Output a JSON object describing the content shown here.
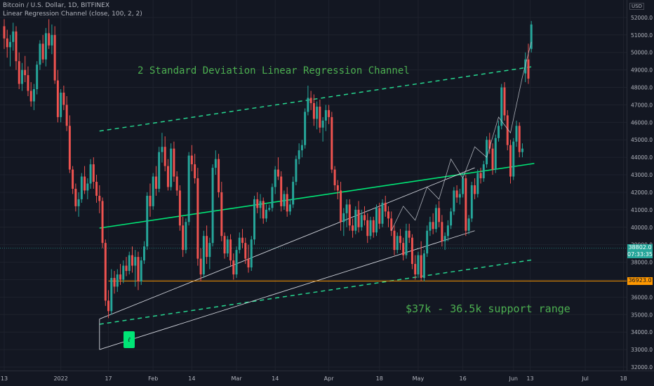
{
  "header": {
    "title": "Bitcoin / U.S. Dollar, 1D, BITFINEX",
    "indicator": "Linear Regression Channel (close, 100, 2, 2)",
    "currency": "USD"
  },
  "annotations": {
    "channel_label": "2 Standard Deviation Linear Regression Channel",
    "support_label": "$37k - 36.5k support range",
    "marker_glyph": "ℓ"
  },
  "colors": {
    "background": "#131722",
    "up_candle": "#26a69a",
    "down_candle": "#ef5350",
    "regression_line": "#00e676",
    "channel_dashed": "#26d68f",
    "support_line": "#ff9800",
    "trend_lines": "#d1d4dc",
    "price_badge": "#26a69a",
    "support_badge": "#ff9800"
  },
  "chart_data": {
    "type": "candlestick",
    "title": "Bitcoin / U.S. Dollar, 1D, BITFINEX",
    "y_axis": {
      "min": 31800,
      "max": 53000,
      "ticks": [
        32000,
        33000,
        34000,
        35000,
        36000,
        37000,
        38000,
        39000,
        40000,
        41000,
        42000,
        43000,
        44000,
        45000,
        46000,
        47000,
        48000,
        49000,
        50000,
        51000,
        52000
      ],
      "tick_labels": [
        "32000.0",
        "33000.0",
        "34000.0",
        "35000.0",
        "36000.0",
        "37000.0",
        "38000.0",
        "39000.0",
        "40000.0",
        "41000.0",
        "42000.0",
        "43000.0",
        "44000.0",
        "45000.0",
        "46000.0",
        "47000.0",
        "48000.0",
        "49000.0",
        "50000.0",
        "51000.0",
        "52000.0"
      ]
    },
    "x_axis": {
      "start_day": 0,
      "end_day": 177,
      "ticks": [
        {
          "day": 0,
          "label": "13"
        },
        {
          "day": 19,
          "label": "2022"
        },
        {
          "day": 35,
          "label": "17"
        },
        {
          "day": 50,
          "label": "Feb"
        },
        {
          "day": 63,
          "label": "14"
        },
        {
          "day": 78,
          "label": "Mar"
        },
        {
          "day": 91,
          "label": "14"
        },
        {
          "day": 109,
          "label": "Apr"
        },
        {
          "day": 126,
          "label": "18"
        },
        {
          "day": 139,
          "label": "May"
        },
        {
          "day": 154,
          "label": "16"
        },
        {
          "day": 171,
          "label": "Jun"
        }
      ],
      "extra_ticks": [
        {
          "label": "13",
          "pos": 0.846
        },
        {
          "label": "Jul",
          "pos": 0.934
        },
        {
          "label": "18",
          "pos": 0.995
        }
      ]
    },
    "candles": [
      [
        51500,
        51900,
        50200,
        50800
      ],
      [
        50800,
        51300,
        49700,
        50300
      ],
      [
        50300,
        51000,
        49200,
        50600
      ],
      [
        50600,
        51700,
        50100,
        51200
      ],
      [
        51200,
        51500,
        49000,
        49500
      ],
      [
        49500,
        50000,
        47900,
        48200
      ],
      [
        48200,
        49400,
        47800,
        49000
      ],
      [
        49000,
        49800,
        48300,
        48700
      ],
      [
        48700,
        49200,
        47500,
        47800
      ],
      [
        47800,
        48300,
        46900,
        47200
      ],
      [
        47200,
        48200,
        46700,
        47900
      ],
      [
        47900,
        49500,
        47600,
        49300
      ],
      [
        49300,
        50700,
        49000,
        50500
      ],
      [
        50500,
        51000,
        49400,
        49600
      ],
      [
        49600,
        51400,
        49200,
        51100
      ],
      [
        51100,
        51900,
        50200,
        50400
      ],
      [
        50400,
        51600,
        49900,
        51000
      ],
      [
        51000,
        51500,
        48200,
        48400
      ],
      [
        48400,
        49000,
        46000,
        46300
      ],
      [
        46300,
        47900,
        46000,
        47700
      ],
      [
        47700,
        48100,
        46700,
        47000
      ],
      [
        47000,
        47500,
        45500,
        45800
      ],
      [
        45800,
        46400,
        43100,
        43300
      ],
      [
        43300,
        43500,
        41900,
        42200
      ],
      [
        42200,
        42500,
        40900,
        41200
      ],
      [
        41200,
        42000,
        40600,
        41600
      ],
      [
        41600,
        43100,
        41400,
        42900
      ],
      [
        42900,
        43500,
        41900,
        42100
      ],
      [
        42100,
        42800,
        41600,
        42500
      ],
      [
        42500,
        43900,
        42200,
        43600
      ],
      [
        43600,
        44000,
        42200,
        42600
      ],
      [
        42600,
        43000,
        41400,
        41800
      ],
      [
        41800,
        42400,
        40800,
        41500
      ],
      [
        41500,
        41700,
        38800,
        39100
      ],
      [
        39100,
        39300,
        35500,
        35800
      ],
      [
        35800,
        36400,
        34800,
        35200
      ],
      [
        35200,
        37600,
        35000,
        37100
      ],
      [
        37100,
        37500,
        36200,
        36600
      ],
      [
        36600,
        37600,
        36300,
        37300
      ],
      [
        37300,
        37900,
        36700,
        37000
      ],
      [
        37000,
        38100,
        36800,
        37800
      ],
      [
        37800,
        38300,
        37200,
        37500
      ],
      [
        37500,
        38600,
        37300,
        38400
      ],
      [
        38400,
        38900,
        37400,
        37800
      ],
      [
        37800,
        38700,
        36600,
        38300
      ],
      [
        38300,
        38600,
        36400,
        36900
      ],
      [
        36900,
        38300,
        36700,
        38100
      ],
      [
        38100,
        39200,
        37900,
        38900
      ],
      [
        38900,
        42000,
        38700,
        41800
      ],
      [
        41800,
        42500,
        40600,
        41200
      ],
      [
        41200,
        43100,
        41000,
        42900
      ],
      [
        42900,
        43500,
        41800,
        42200
      ],
      [
        42200,
        44600,
        42000,
        44300
      ],
      [
        44300,
        45400,
        43700,
        44600
      ],
      [
        44600,
        45200,
        43200,
        43500
      ],
      [
        43500,
        43900,
        42100,
        42300
      ],
      [
        42300,
        44800,
        42100,
        44500
      ],
      [
        44500,
        44900,
        42600,
        42900
      ],
      [
        42900,
        43200,
        41800,
        42100
      ],
      [
        42100,
        42400,
        39800,
        40100
      ],
      [
        40100,
        40600,
        38300,
        38700
      ],
      [
        38700,
        40500,
        38500,
        40300
      ],
      [
        40300,
        44300,
        40100,
        44100
      ],
      [
        44100,
        44700,
        43200,
        43600
      ],
      [
        43600,
        44200,
        42500,
        42800
      ],
      [
        42800,
        43400,
        37800,
        38200
      ],
      [
        38200,
        38800,
        36900,
        37300
      ],
      [
        37300,
        39800,
        37100,
        39500
      ],
      [
        39500,
        40100,
        37900,
        38300
      ],
      [
        38300,
        39400,
        37600,
        39100
      ],
      [
        39100,
        43600,
        38900,
        43400
      ],
      [
        43400,
        44400,
        43000,
        43900
      ],
      [
        43900,
        44200,
        41700,
        42000
      ],
      [
        42000,
        42600,
        39200,
        39500
      ],
      [
        39500,
        39700,
        38200,
        38500
      ],
      [
        38500,
        39500,
        38300,
        39300
      ],
      [
        39300,
        39600,
        37800,
        38100
      ],
      [
        38100,
        38500,
        37000,
        37300
      ],
      [
        37300,
        38900,
        37100,
        38700
      ],
      [
        38700,
        39700,
        38500,
        39400
      ],
      [
        39400,
        39900,
        38800,
        39100
      ],
      [
        39100,
        39400,
        37900,
        38200
      ],
      [
        38200,
        39000,
        37400,
        37700
      ],
      [
        37700,
        39500,
        37500,
        39300
      ],
      [
        39300,
        41800,
        39000,
        41600
      ],
      [
        41600,
        42000,
        40800,
        41100
      ],
      [
        41100,
        41900,
        40500,
        41500
      ],
      [
        41500,
        41700,
        40200,
        40500
      ],
      [
        40500,
        41300,
        40300,
        41000
      ],
      [
        41000,
        41300,
        40900,
        41100
      ],
      [
        41100,
        42500,
        40900,
        42300
      ],
      [
        42300,
        43500,
        41900,
        43300
      ],
      [
        43300,
        44000,
        42700,
        42900
      ],
      [
        42900,
        43200,
        40900,
        41200
      ],
      [
        41200,
        42100,
        41000,
        41900
      ],
      [
        41900,
        42300,
        40600,
        40900
      ],
      [
        40900,
        41600,
        40700,
        41300
      ],
      [
        41300,
        42900,
        41100,
        42600
      ],
      [
        42600,
        44100,
        42400,
        43900
      ],
      [
        43900,
        44800,
        43600,
        44400
      ],
      [
        44400,
        45000,
        44000,
        44700
      ],
      [
        44700,
        46800,
        44500,
        46600
      ],
      [
        46600,
        48100,
        46400,
        47400
      ],
      [
        47400,
        47800,
        46700,
        47100
      ],
      [
        47100,
        47600,
        45800,
        46200
      ],
      [
        46200,
        47200,
        45600,
        46900
      ],
      [
        46900,
        47300,
        45400,
        45700
      ],
      [
        45700,
        46300,
        44900,
        46100
      ],
      [
        46100,
        47000,
        45500,
        46700
      ],
      [
        46700,
        47000,
        45900,
        46300
      ],
      [
        46300,
        46600,
        43100,
        43300
      ],
      [
        43300,
        43500,
        42100,
        42400
      ],
      [
        42400,
        42700,
        41600,
        42100
      ],
      [
        42100,
        42600,
        39800,
        40300
      ],
      [
        40300,
        41100,
        39500,
        40800
      ],
      [
        40800,
        41600,
        40000,
        41300
      ],
      [
        41300,
        41600,
        39800,
        40100
      ],
      [
        40100,
        40500,
        39400,
        39800
      ],
      [
        39800,
        41200,
        39600,
        41000
      ],
      [
        41000,
        41500,
        39700,
        40000
      ],
      [
        40000,
        41000,
        39800,
        40700
      ],
      [
        40700,
        41200,
        40100,
        40400
      ],
      [
        40400,
        40800,
        39100,
        39500
      ],
      [
        39500,
        40600,
        39300,
        40400
      ],
      [
        40400,
        40600,
        39400,
        39700
      ],
      [
        39700,
        41300,
        39500,
        41100
      ],
      [
        41100,
        41400,
        39900,
        40200
      ],
      [
        40200,
        41600,
        40000,
        41400
      ],
      [
        41400,
        41800,
        40600,
        40900
      ],
      [
        40900,
        41200,
        40000,
        40500
      ],
      [
        40500,
        40900,
        39500,
        39800
      ],
      [
        39800,
        40100,
        38400,
        38700
      ],
      [
        38700,
        39700,
        38500,
        39500
      ],
      [
        39500,
        39900,
        38700,
        39100
      ],
      [
        39100,
        39400,
        38100,
        38400
      ],
      [
        38400,
        40200,
        38200,
        39800
      ],
      [
        39800,
        40200,
        39100,
        39400
      ],
      [
        39400,
        39600,
        37600,
        37900
      ],
      [
        37900,
        38400,
        37000,
        37300
      ],
      [
        37300,
        38600,
        37100,
        38400
      ],
      [
        38400,
        39200,
        36900,
        37100
      ],
      [
        37100,
        38700,
        36900,
        38500
      ],
      [
        38500,
        40100,
        38300,
        39800
      ],
      [
        39800,
        40600,
        39500,
        40300
      ],
      [
        40300,
        40800,
        39600,
        39900
      ],
      [
        39900,
        41300,
        39700,
        41100
      ],
      [
        41100,
        41500,
        40000,
        40300
      ],
      [
        40300,
        40700,
        38900,
        39200
      ],
      [
        39200,
        39700,
        38700,
        39500
      ],
      [
        39500,
        40400,
        39200,
        40100
      ],
      [
        40100,
        41100,
        39900,
        40900
      ],
      [
        40900,
        42300,
        40700,
        42100
      ],
      [
        42100,
        42400,
        41400,
        41700
      ],
      [
        41700,
        42200,
        41300,
        41900
      ],
      [
        41900,
        43100,
        41700,
        42800
      ],
      [
        42800,
        43000,
        39500,
        39800
      ],
      [
        39800,
        40700,
        39600,
        40500
      ],
      [
        40500,
        42600,
        40300,
        42400
      ],
      [
        42400,
        42800,
        41600,
        41900
      ],
      [
        41900,
        43300,
        41700,
        43100
      ],
      [
        43100,
        43400,
        42500,
        42800
      ],
      [
        42800,
        43800,
        42600,
        43600
      ],
      [
        43600,
        45200,
        43400,
        45000
      ],
      [
        45000,
        45400,
        44200,
        44500
      ],
      [
        44500,
        44800,
        43000,
        43300
      ],
      [
        43300,
        45300,
        43100,
        45100
      ],
      [
        45100,
        46100,
        44900,
        45800
      ],
      [
        45800,
        48200,
        45600,
        48000
      ],
      [
        48000,
        48300,
        46100,
        46400
      ],
      [
        46400,
        46700,
        44400,
        44700
      ],
      [
        44700,
        45000,
        42500,
        42900
      ],
      [
        42900,
        45100,
        42700,
        44900
      ],
      [
        44900,
        46100,
        44600,
        45800
      ],
      [
        45800,
        46000,
        44000,
        44300
      ],
      [
        44300,
        44800,
        44000,
        44500
      ],
      [
        48800,
        50000,
        48300,
        49600
      ],
      [
        49600,
        50500,
        48200,
        48500
      ],
      [
        50200,
        51800,
        50000,
        51600
      ]
    ],
    "overlays": {
      "regression_upper": {
        "from": [
          32,
          45500
        ],
        "to": [
          178,
          49200
        ]
      },
      "regression_mid": {
        "from": [
          32,
          39950
        ],
        "to": [
          178,
          43650
        ]
      },
      "regression_lower": {
        "from": [
          32,
          34450
        ],
        "to": [
          178,
          38150
        ]
      },
      "support_level": 36923,
      "trend_line_1": {
        "from": [
          32,
          33000
        ],
        "to": [
          158,
          39800
        ]
      },
      "trend_line_2": {
        "from": [
          32,
          34750
        ],
        "to": [
          158,
          43400
        ]
      },
      "forecast_path": [
        [
          130,
          39800
        ],
        [
          134,
          41200
        ],
        [
          138,
          40400
        ],
        [
          142,
          42300
        ],
        [
          146,
          41600
        ],
        [
          150,
          43900
        ],
        [
          154,
          42800
        ],
        [
          158,
          44600
        ],
        [
          162,
          44000
        ],
        [
          166,
          46300
        ],
        [
          170,
          45400
        ],
        [
          174,
          48600
        ],
        [
          177,
          50600
        ]
      ]
    },
    "price_labels": {
      "current": {
        "value": "38802.0",
        "timer": "07:33:35",
        "y_value": 38802
      },
      "support": {
        "value": "36923.0",
        "y_value": 36923
      }
    }
  }
}
